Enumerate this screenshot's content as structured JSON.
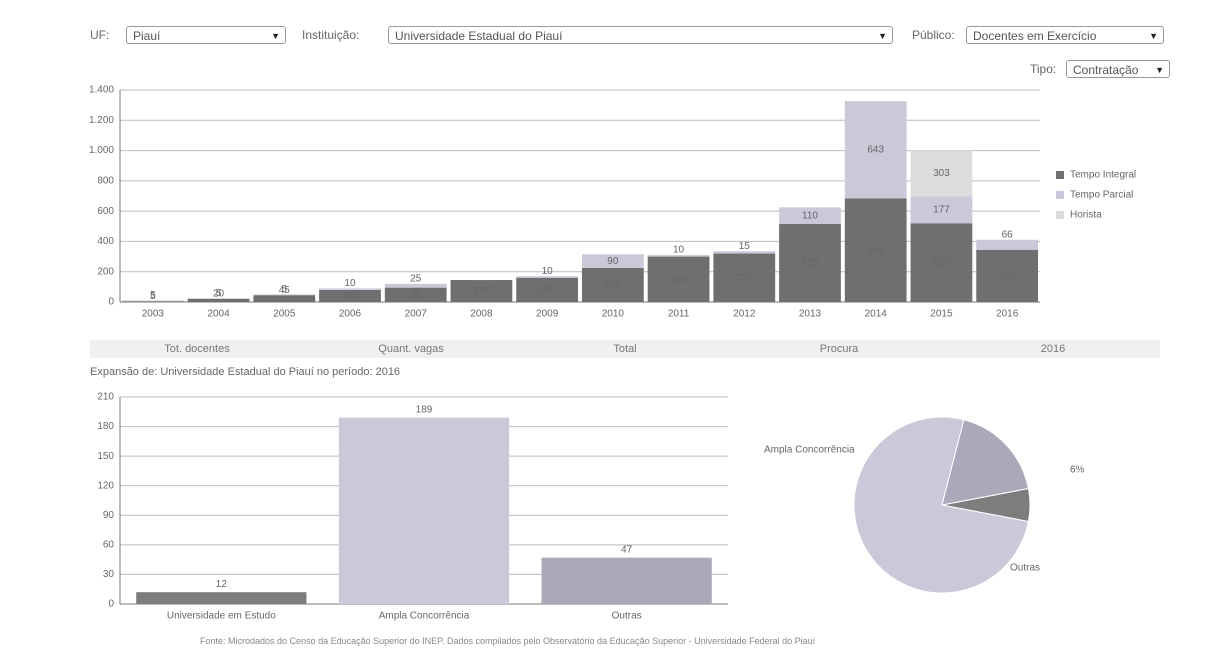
{
  "filters": {
    "uf_label": "UF:",
    "uf_value": "Piauí",
    "inst_label": "Instituição:",
    "inst_value": "Universidade Estadual do Piauí",
    "period_label": "Público:",
    "period_value": "Docentes em Exercício",
    "type_label": "Tipo:",
    "type_value": "Contratação"
  },
  "table": {
    "headers": [
      "Tot. docentes",
      "Quant. vagas",
      "Total",
      "Procura",
      "2016"
    ]
  },
  "subtitle": "Expansão de: Universidade Estadual do Piauí no período: 2016",
  "footnote": "Fonte: Microdados do Censo da Educação Superior do INEP. Dados compilados pelo Observatório da Educação Superior - Universidade Federal do Piauí",
  "chart_data": [
    {
      "type": "bar",
      "stacked": true,
      "grid": true,
      "categories": [
        "2003",
        "2004",
        "2005",
        "2006",
        "2007",
        "2008",
        "2009",
        "2010",
        "2011",
        "2012",
        "2013",
        "2014",
        "2015",
        "2016"
      ],
      "series": [
        {
          "name": "Tempo Integral",
          "color": "#6f6f6f",
          "values": [
            5,
            20,
            45,
            80,
            95,
            145,
            160,
            225,
            300,
            320,
            515,
            684,
            520,
            345
          ]
        },
        {
          "name": "Tempo Parcial",
          "color": "#c9c9d9",
          "values": [
            5,
            5,
            5,
            10,
            25,
            0,
            10,
            90,
            10,
            15,
            110,
            643,
            177,
            66
          ]
        },
        {
          "name": "Horista",
          "color": "#dcdcdc",
          "values": [
            0,
            0,
            0,
            0,
            0,
            0,
            0,
            0,
            0,
            0,
            0,
            0,
            303,
            0
          ]
        }
      ],
      "ylim": [
        0,
        1400
      ],
      "yticks": [
        0,
        200,
        400,
        600,
        800,
        {
          "value": 1000,
          "label": "1.000"
        },
        {
          "value": 1200,
          "label": "1.200"
        },
        {
          "value": 1400,
          "label": "1.400"
        }
      ],
      "legend": "right"
    },
    {
      "type": "bar",
      "grid": true,
      "categories": [
        "Universidade em Estudo",
        "Ampla Concorrência",
        "Outras"
      ],
      "values": [
        12,
        189,
        47
      ],
      "colors": [
        "#7d7d7d",
        "#c9c9d9",
        "#a9a9b9"
      ],
      "ylim": [
        0,
        210
      ],
      "yticks": [
        0,
        30,
        60,
        90,
        120,
        150,
        180,
        210
      ]
    },
    {
      "type": "pie",
      "categories": [
        "Universidade em Estudo",
        "Ampla Concorrência",
        "Outras"
      ],
      "values": [
        6,
        76,
        18
      ],
      "colors": [
        "#7d7d7d",
        "#c9c9d9",
        "#a9a9b9"
      ],
      "labels": [
        "6%",
        "Ampla Concorrência",
        "Outras"
      ]
    }
  ]
}
